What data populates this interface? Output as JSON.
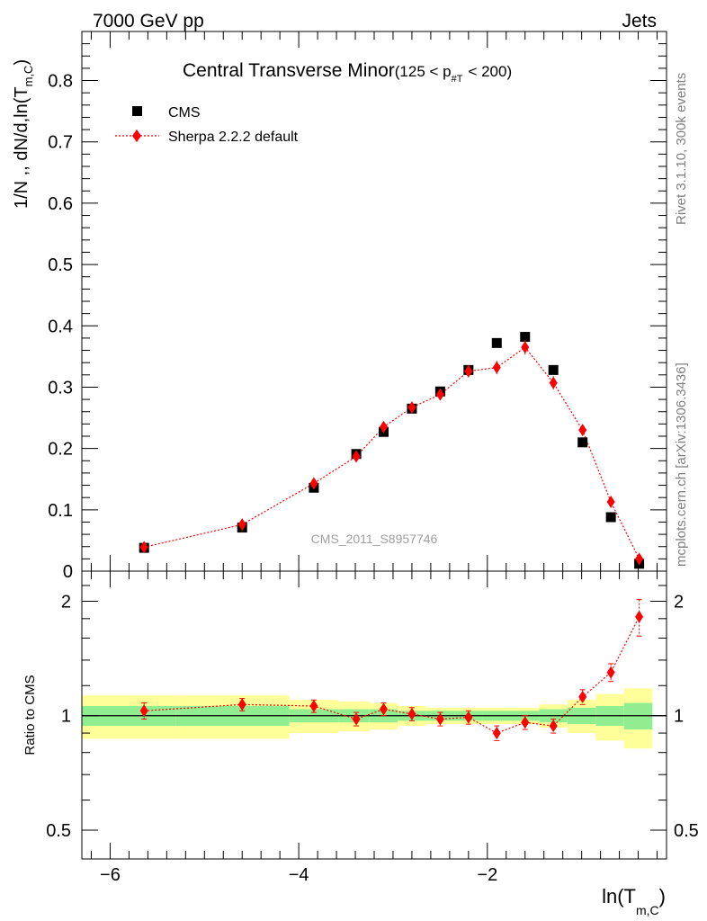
{
  "header": {
    "left": "7000 GeV pp",
    "right": "Jets"
  },
  "side_labels": {
    "rivet": "Rivet 3.1.10,  300k events",
    "mcplots": "mcplots.cern.ch [arXiv:1306.3436]"
  },
  "chart_data": {
    "type": "scatter",
    "title_main": "Central Transverse Minor",
    "title_range": {
      "pre": "(125 < p",
      "sub": "#T",
      "post": "< 200)"
    },
    "watermark": "CMS_2011_S8957746",
    "ylabel": {
      "main": "1/N ,, dN/d,ln(T",
      "sub": "m,C",
      "close": ")"
    },
    "xlabel": {
      "main": "ln(T",
      "sub": "m,C",
      "close": ")"
    },
    "ratio_ylabel": "Ratio to CMS",
    "xlim": [
      -6.3,
      -0.1
    ],
    "ylim": [
      0,
      0.88
    ],
    "ratio_ylim": [
      0.42,
      2.4
    ],
    "x_ticks": [
      {
        "v": -6,
        "label": "−6"
      },
      {
        "v": -4,
        "label": "−4"
      },
      {
        "v": -2,
        "label": "−2"
      }
    ],
    "y_ticks": [
      {
        "v": 0.0,
        "label": "0"
      },
      {
        "v": 0.1,
        "label": "0.1"
      },
      {
        "v": 0.2,
        "label": "0.2"
      },
      {
        "v": 0.3,
        "label": "0.3"
      },
      {
        "v": 0.4,
        "label": "0.4"
      },
      {
        "v": 0.5,
        "label": "0.5"
      },
      {
        "v": 0.6,
        "label": "0.6"
      },
      {
        "v": 0.7,
        "label": "0.7"
      },
      {
        "v": 0.8,
        "label": "0.8"
      }
    ],
    "ratio_ticks": [
      {
        "v": 0.5,
        "label": "0.5"
      },
      {
        "v": 1,
        "label": "1"
      },
      {
        "v": 2,
        "label": "2"
      }
    ],
    "legend": [
      {
        "name": "CMS",
        "marker": "square",
        "color": "#000000"
      },
      {
        "name": "Sherpa 2.2.2 default",
        "marker": "diamond",
        "color": "#ff0000"
      }
    ],
    "series": [
      {
        "name": "CMS",
        "x": [
          -5.64,
          -4.6,
          -3.84,
          -3.39,
          -3.1,
          -2.8,
          -2.5,
          -2.2,
          -1.9,
          -1.6,
          -1.3,
          -0.99,
          -0.69,
          -0.39
        ],
        "values": [
          0.038,
          0.071,
          0.136,
          0.191,
          0.227,
          0.265,
          0.293,
          0.328,
          0.372,
          0.382,
          0.328,
          0.21,
          0.088,
          0.012
        ]
      },
      {
        "name": "Sherpa 2.2.2 default",
        "x": [
          -5.64,
          -4.6,
          -3.84,
          -3.39,
          -3.1,
          -2.8,
          -2.5,
          -2.2,
          -1.9,
          -1.6,
          -1.3,
          -0.99,
          -0.69,
          -0.39
        ],
        "values": [
          0.039,
          0.076,
          0.143,
          0.187,
          0.235,
          0.267,
          0.288,
          0.326,
          0.332,
          0.365,
          0.307,
          0.23,
          0.113,
          0.02
        ],
        "errors": [
          0.003,
          0.004,
          0.005,
          0.007,
          0.008,
          0.008,
          0.009,
          0.01,
          0.011,
          0.012,
          0.011,
          0.008,
          0.006,
          0.004
        ],
        "ratio": [
          1.03,
          1.07,
          1.06,
          0.98,
          1.04,
          1.01,
          0.98,
          0.99,
          0.9,
          0.96,
          0.94,
          1.12,
          1.3,
          1.82
        ],
        "ratio_errors": [
          0.05,
          0.04,
          0.04,
          0.04,
          0.04,
          0.04,
          0.04,
          0.04,
          0.04,
          0.04,
          0.04,
          0.05,
          0.07,
          0.2
        ]
      }
    ],
    "ratio_band": {
      "edges": [
        -6.3,
        -5.3,
        -4.1,
        -3.58,
        -3.25,
        -2.95,
        -2.65,
        -2.35,
        -2.05,
        -1.75,
        -1.45,
        -1.15,
        -0.85,
        -0.55,
        -0.25
      ],
      "inner": [
        0.06,
        0.06,
        0.04,
        0.04,
        0.04,
        0.03,
        0.03,
        0.03,
        0.03,
        0.03,
        0.04,
        0.05,
        0.06,
        0.08
      ],
      "outer": [
        0.13,
        0.13,
        0.1,
        0.09,
        0.08,
        0.06,
        0.05,
        0.05,
        0.05,
        0.05,
        0.07,
        0.1,
        0.14,
        0.18
      ],
      "inner_color": "#90ee90",
      "outer_color": "#ffff99"
    }
  }
}
